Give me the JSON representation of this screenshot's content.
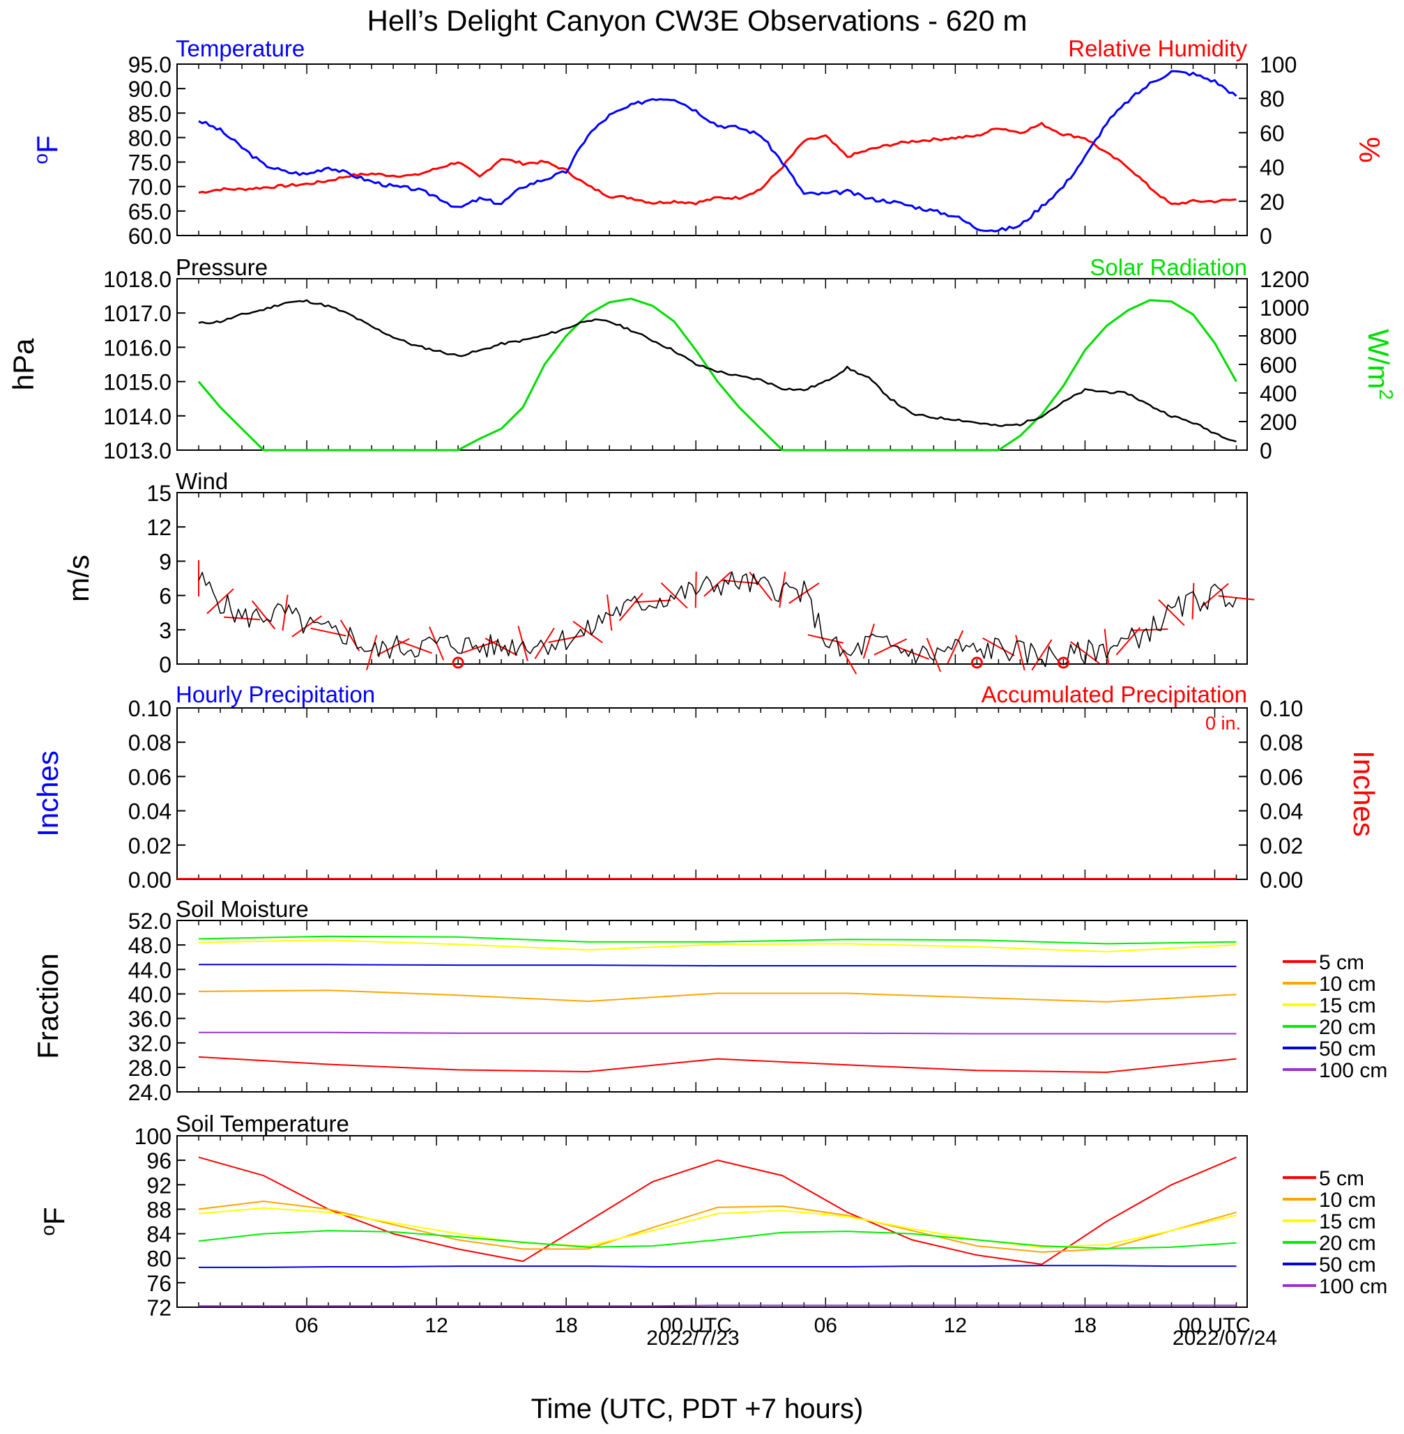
{
  "figure": {
    "title": "Hell’s Delight Canyon CW3E Observations - 620 m",
    "xlabel": "Time (UTC, PDT +7 hours)",
    "time_ticks": [
      "06",
      "12",
      "18",
      "00 UTC",
      "06",
      "12",
      "18",
      "00 UTC"
    ],
    "date_labels": [
      "2022/7/23",
      "2022/07/24"
    ]
  },
  "chart_data": [
    {
      "id": "temp_rh",
      "type": "line",
      "title_left": "Temperature",
      "title_right": "Relative Humidity",
      "ylabel": "oF",
      "ylabel_right": "%",
      "ylim": [
        60,
        95
      ],
      "ylim_right": [
        0,
        100
      ],
      "yticks": [
        "95.0",
        "90.0",
        "85.0",
        "80.0",
        "75.0",
        "70.0",
        "65.0",
        "60.0"
      ],
      "yticks_right": [
        "100",
        "80",
        "60",
        "40",
        "20",
        "0"
      ],
      "x_hours": [
        1,
        2,
        3,
        4,
        5,
        6,
        7,
        8,
        9,
        10,
        11,
        12,
        13,
        14,
        15,
        16,
        17,
        18,
        19,
        20,
        21,
        22,
        23,
        24,
        25,
        26,
        27,
        28,
        29,
        30,
        31,
        32,
        33,
        34,
        35,
        36,
        37,
        38,
        39,
        40,
        41,
        42,
        43,
        44,
        45,
        46,
        47,
        48,
        49
      ],
      "series": [
        {
          "name": "Temperature",
          "color": "#0000ff",
          "axis": "left",
          "values": [
            83.5,
            81.5,
            78,
            74.5,
            73,
            72.5,
            74,
            72.5,
            71,
            70,
            69.5,
            68,
            65.5,
            67.5,
            66.5,
            70,
            71.5,
            73,
            80.5,
            84.5,
            86.5,
            88,
            88,
            85.5,
            82.5,
            82,
            80.5,
            75,
            68.5,
            68.5,
            69,
            67.5,
            67,
            66,
            65,
            64,
            61.5,
            61,
            62,
            66,
            70,
            76,
            83,
            87.5,
            91,
            93.5,
            93,
            91.5,
            88.5
          ]
        },
        {
          "name": "Relative Humidity",
          "color": "#ff0000",
          "axis": "right",
          "values": [
            25,
            27,
            27,
            28,
            29,
            30,
            32,
            35,
            36,
            35,
            35,
            39,
            43,
            34,
            45,
            42,
            43,
            38,
            29,
            23,
            22,
            19,
            20,
            19,
            22,
            22,
            27,
            40,
            55,
            58,
            46,
            50,
            53,
            55,
            56,
            57,
            58,
            63,
            60,
            65,
            59,
            57,
            48,
            40,
            28,
            18,
            20,
            20,
            21
          ]
        }
      ]
    },
    {
      "id": "pressure_solar",
      "type": "line",
      "title_left": "Pressure",
      "title_right": "Solar Radiation",
      "ylabel": "hPa",
      "ylabel_right": "W/m2",
      "ylim": [
        1013,
        1018
      ],
      "ylim_right": [
        0,
        1200
      ],
      "yticks": [
        "1018.0",
        "1017.0",
        "1016.0",
        "1015.0",
        "1014.0",
        "1013.0"
      ],
      "yticks_right": [
        "1200",
        "1000",
        "800",
        "600",
        "400",
        "200",
        "0"
      ],
      "x_hours": [
        1,
        2,
        3,
        4,
        5,
        6,
        7,
        8,
        9,
        10,
        11,
        12,
        13,
        14,
        15,
        16,
        17,
        18,
        19,
        20,
        21,
        22,
        23,
        24,
        25,
        26,
        27,
        28,
        29,
        30,
        31,
        32,
        33,
        34,
        35,
        36,
        37,
        38,
        39,
        40,
        41,
        42,
        43,
        44,
        45,
        46,
        47,
        48,
        49
      ],
      "series": [
        {
          "name": "Pressure",
          "color": "#000000",
          "axis": "left",
          "values": [
            1016.7,
            1016.75,
            1016.95,
            1017.1,
            1017.3,
            1017.35,
            1017.2,
            1016.95,
            1016.6,
            1016.3,
            1016.05,
            1015.9,
            1015.75,
            1015.9,
            1016.1,
            1016.2,
            1016.35,
            1016.55,
            1016.8,
            1016.75,
            1016.5,
            1016.2,
            1015.9,
            1015.5,
            1015.3,
            1015.15,
            1015.05,
            1014.8,
            1014.75,
            1015.0,
            1015.4,
            1015.1,
            1014.5,
            1014.05,
            1013.95,
            1013.9,
            1013.8,
            1013.7,
            1013.75,
            1014.0,
            1014.4,
            1014.75,
            1014.7,
            1014.65,
            1014.3,
            1014.0,
            1013.8,
            1013.5,
            1013.25
          ]
        },
        {
          "name": "Solar Radiation",
          "color": "#00dd00",
          "axis": "right",
          "values": [
            480,
            300,
            150,
            0,
            0,
            0,
            0,
            0,
            0,
            0,
            0,
            0,
            0,
            80,
            150,
            300,
            600,
            800,
            950,
            1035,
            1060,
            1010,
            900,
            700,
            480,
            300,
            150,
            0,
            0,
            0,
            0,
            0,
            0,
            0,
            0,
            0,
            0,
            0,
            100,
            250,
            450,
            700,
            870,
            980,
            1050,
            1040,
            950,
            750,
            480
          ]
        }
      ]
    },
    {
      "id": "wind",
      "type": "line",
      "title_left": "Wind",
      "ylabel": "m/s",
      "ylim": [
        0,
        15
      ],
      "yticks": [
        "15",
        "12",
        "9",
        "6",
        "3",
        "0"
      ],
      "x_hours": [
        1,
        2,
        3,
        4,
        5,
        6,
        7,
        8,
        9,
        10,
        11,
        12,
        13,
        14,
        15,
        16,
        17,
        18,
        19,
        20,
        21,
        22,
        23,
        24,
        25,
        26,
        27,
        28,
        29,
        30,
        31,
        32,
        33,
        34,
        35,
        36,
        37,
        38,
        39,
        40,
        41,
        42,
        43,
        44,
        45,
        46,
        47,
        48,
        49
      ],
      "series": [
        {
          "name": "Wind speed",
          "color": "#000000",
          "axis": "left",
          "values": [
            7.5,
            5.5,
            4,
            4.3,
            4.5,
            3.3,
            2.8,
            2.5,
            1.0,
            1.5,
            1.5,
            1.8,
            1.8,
            1.5,
            1.5,
            1.8,
            1.8,
            2.2,
            2.8,
            4.5,
            5.0,
            5.5,
            6.0,
            6.5,
            7.0,
            7.2,
            6.8,
            6.5,
            6.2,
            2.2,
            0.5,
            2.0,
            1.5,
            1.0,
            0.8,
            1.5,
            1.0,
            1.5,
            1.0,
            0.8,
            0.5,
            1.0,
            1.5,
            2.0,
            3.0,
            4.5,
            5.5,
            6.0,
            5.8
          ]
        }
      ],
      "calm_marker_hours": [
        13,
        37,
        41
      ],
      "barb_color": "#ff0000"
    },
    {
      "id": "precip",
      "type": "line",
      "title_left": "Hourly Precipitation",
      "title_right": "Accumulated Precipitation",
      "annotation": "0 in.",
      "ylabel": "Inches",
      "ylabel_right": "Inches",
      "ylim": [
        0,
        0.1
      ],
      "yticks": [
        "0.10",
        "0.08",
        "0.06",
        "0.04",
        "0.02",
        "0.00"
      ],
      "yticks_right": [
        "0.10",
        "0.08",
        "0.06",
        "0.04",
        "0.02",
        "0.00"
      ],
      "series": [
        {
          "name": "Hourly Precipitation",
          "color": "#0000ff",
          "values": [
            0,
            0
          ]
        },
        {
          "name": "Accumulated Precipitation",
          "color": "#ff0000",
          "values": [
            0,
            0
          ]
        }
      ]
    },
    {
      "id": "soil_moisture",
      "type": "line",
      "title_left": "Soil Moisture",
      "ylabel": "Fraction",
      "ylim": [
        24,
        52
      ],
      "yticks": [
        "52.0",
        "48.0",
        "44.0",
        "40.0",
        "36.0",
        "32.0",
        "28.0",
        "24.0"
      ],
      "x_hours": [
        1,
        7,
        13,
        19,
        25,
        31,
        37,
        43,
        49
      ],
      "legend": [
        "5 cm",
        "10 cm",
        "15 cm",
        "20 cm",
        "50 cm",
        "100 cm"
      ],
      "series": [
        {
          "name": "5 cm",
          "color": "#ff0000",
          "values": [
            29.7,
            28.5,
            27.6,
            27.3,
            29.4,
            28.4,
            27.5,
            27.2,
            29.4
          ]
        },
        {
          "name": "10 cm",
          "color": "#ffa500",
          "values": [
            40.4,
            40.6,
            39.8,
            38.8,
            40.1,
            40.1,
            39.4,
            38.7,
            39.9
          ]
        },
        {
          "name": "15 cm",
          "color": "#ffff00",
          "values": [
            48.4,
            48.8,
            48.1,
            47.2,
            48.1,
            48.2,
            47.7,
            46.9,
            48.0
          ]
        },
        {
          "name": "20 cm",
          "color": "#00ee00",
          "values": [
            49.0,
            49.4,
            49.3,
            48.5,
            48.5,
            48.9,
            48.8,
            48.2,
            48.5
          ]
        },
        {
          "name": "50 cm",
          "color": "#0000dd",
          "values": [
            44.8,
            44.8,
            44.7,
            44.7,
            44.6,
            44.6,
            44.6,
            44.5,
            44.5
          ]
        },
        {
          "name": "100 cm",
          "color": "#9932cc",
          "values": [
            33.7,
            33.7,
            33.6,
            33.6,
            33.6,
            33.6,
            33.5,
            33.5,
            33.5
          ]
        }
      ]
    },
    {
      "id": "soil_temperature",
      "type": "line",
      "title_left": "Soil Temperature",
      "ylabel": "oF",
      "ylim": [
        72,
        100
      ],
      "yticks": [
        "100",
        "96",
        "92",
        "88",
        "84",
        "80",
        "76",
        "72"
      ],
      "x_hours": [
        1,
        4,
        7,
        10,
        13,
        16,
        19,
        22,
        25,
        28,
        31,
        34,
        37,
        40,
        43,
        46,
        49
      ],
      "legend": [
        "5 cm",
        "10 cm",
        "15 cm",
        "20 cm",
        "50 cm",
        "100 cm"
      ],
      "series": [
        {
          "name": "5 cm",
          "color": "#ff0000",
          "values": [
            96.5,
            93.5,
            88,
            84,
            81.5,
            79.5,
            86,
            92.5,
            96,
            93.5,
            87.5,
            83,
            80.5,
            79,
            86,
            92,
            96.5
          ]
        },
        {
          "name": "10 cm",
          "color": "#ffa500",
          "values": [
            88,
            89.3,
            88,
            85.5,
            83,
            81.5,
            81.5,
            85,
            88.3,
            88.5,
            87,
            84.5,
            82,
            81,
            81.5,
            84.5,
            87.5
          ]
        },
        {
          "name": "15 cm",
          "color": "#ffff00",
          "values": [
            87.3,
            88.2,
            87.5,
            85.8,
            84,
            82.5,
            82,
            84.5,
            87.3,
            87.8,
            86.8,
            84.8,
            83,
            81.8,
            82.2,
            84.5,
            87
          ]
        },
        {
          "name": "20 cm",
          "color": "#00ee00",
          "values": [
            82.8,
            84,
            84.5,
            84.3,
            83.5,
            82.6,
            81.8,
            82,
            83,
            84.2,
            84.4,
            84,
            83,
            82,
            81.6,
            81.8,
            82.5
          ]
        },
        {
          "name": "50 cm",
          "color": "#0000dd",
          "values": [
            78.5,
            78.5,
            78.6,
            78.6,
            78.7,
            78.7,
            78.7,
            78.6,
            78.6,
            78.6,
            78.6,
            78.7,
            78.7,
            78.8,
            78.8,
            78.7,
            78.7
          ]
        },
        {
          "name": "100 cm",
          "color": "#9932cc",
          "values": [
            72.2,
            72.2,
            72.2,
            72.2,
            72.2,
            72.2,
            72.2,
            72.2,
            72.3,
            72.3,
            72.3,
            72.3,
            72.3,
            72.3,
            72.3,
            72.3,
            72.3
          ]
        }
      ]
    }
  ]
}
